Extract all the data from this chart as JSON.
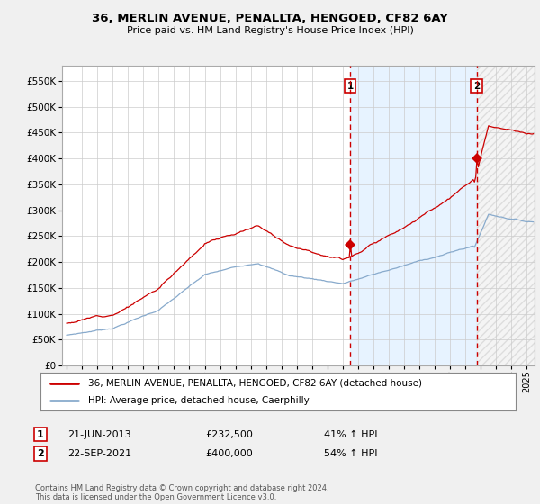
{
  "title": "36, MERLIN AVENUE, PENALLTA, HENGOED, CF82 6AY",
  "subtitle": "Price paid vs. HM Land Registry's House Price Index (HPI)",
  "yticks": [
    0,
    50000,
    100000,
    150000,
    200000,
    250000,
    300000,
    350000,
    400000,
    450000,
    500000,
    550000
  ],
  "xlim_start": 1994.7,
  "xlim_end": 2025.5,
  "ylim": [
    0,
    580000
  ],
  "sale1_year": 2013.47,
  "sale1_price": 232500,
  "sale2_year": 2021.72,
  "sale2_price": 400000,
  "red_color": "#cc0000",
  "blue_color": "#88aacc",
  "shade_color": "#ddeeff",
  "bg_color": "#f0f0f0",
  "plot_bg": "#ffffff",
  "legend_label_red": "36, MERLIN AVENUE, PENALLTA, HENGOED, CF82 6AY (detached house)",
  "legend_label_blue": "HPI: Average price, detached house, Caerphilly",
  "annotation1_date": "21-JUN-2013",
  "annotation1_price": "£232,500",
  "annotation1_hpi": "41% ↑ HPI",
  "annotation2_date": "22-SEP-2021",
  "annotation2_price": "£400,000",
  "annotation2_hpi": "54% ↑ HPI",
  "footer": "Contains HM Land Registry data © Crown copyright and database right 2024.\nThis data is licensed under the Open Government Licence v3.0."
}
